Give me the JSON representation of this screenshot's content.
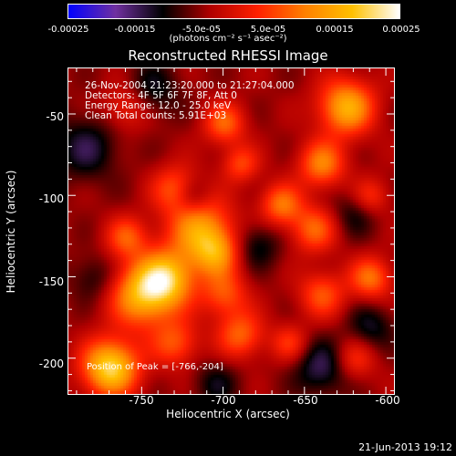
{
  "colorbar": {
    "ticks": [
      "-0.00025",
      "-0.00015",
      "-5.0e-05",
      "5.0e-05",
      "0.00015",
      "0.00025"
    ],
    "units": "(photons cm⁻² s⁻¹ asec⁻²)",
    "range": [
      -0.00025,
      0.00025
    ],
    "colors": [
      "#0000ff",
      "#7030a0",
      "#000000",
      "#b00000",
      "#ff2000",
      "#ff8000",
      "#ffc000",
      "#ffffff"
    ]
  },
  "chart_data": {
    "type": "heatmap",
    "title": "Reconstructed RHESSI Image",
    "xlabel": "Heliocentric X (arcsec)",
    "ylabel": "Heliocentric Y (arcsec)",
    "xlim": [
      -795,
      -595
    ],
    "ylim": [
      -222,
      -22
    ],
    "xticks": [
      "-750",
      "-700",
      "-650",
      "-600"
    ],
    "xtick_values": [
      -750,
      -700,
      -650,
      -600
    ],
    "yticks": [
      "-50",
      "-100",
      "-150",
      "-200"
    ],
    "ytick_values": [
      -50,
      -100,
      -150,
      -200
    ],
    "annotations": [
      "26-Nov-2004 21:23:20.000 to 21:27:04.000",
      "Detectors: 4F 5F 6F 7F 8F, Att 0",
      "Energy Range: 12.0 - 25.0 keV",
      "Clean    Total counts: 5.91E+03"
    ],
    "peak_label": "Position of Peak = [-766,-204]",
    "peak": [
      -766,
      -204
    ],
    "grid": false,
    "blobs": [
      {
        "x": -770,
        "y": -205,
        "amp": 1.0,
        "s": 12
      },
      {
        "x": -750,
        "y": -160,
        "amp": 0.8,
        "s": 14
      },
      {
        "x": -735,
        "y": -150,
        "amp": 0.75,
        "s": 12
      },
      {
        "x": -715,
        "y": -120,
        "amp": 0.7,
        "s": 14
      },
      {
        "x": -705,
        "y": -135,
        "amp": 0.55,
        "s": 10
      },
      {
        "x": -690,
        "y": -185,
        "amp": 0.5,
        "s": 10
      },
      {
        "x": -700,
        "y": -160,
        "amp": 0.45,
        "s": 10
      },
      {
        "x": -625,
        "y": -45,
        "amp": 0.8,
        "s": 12
      },
      {
        "x": -640,
        "y": -80,
        "amp": 0.6,
        "s": 10
      },
      {
        "x": -665,
        "y": -105,
        "amp": 0.55,
        "s": 9
      },
      {
        "x": -645,
        "y": -120,
        "amp": 0.5,
        "s": 10
      },
      {
        "x": -640,
        "y": -160,
        "amp": 0.45,
        "s": 10
      },
      {
        "x": -700,
        "y": -55,
        "amp": 0.5,
        "s": 9
      },
      {
        "x": -690,
        "y": -80,
        "amp": 0.4,
        "s": 8
      },
      {
        "x": -760,
        "y": -125,
        "amp": 0.45,
        "s": 9
      },
      {
        "x": -730,
        "y": -95,
        "amp": 0.45,
        "s": 10
      },
      {
        "x": -610,
        "y": -150,
        "amp": 0.55,
        "s": 9
      },
      {
        "x": -620,
        "y": -200,
        "amp": 0.35,
        "s": 9
      },
      {
        "x": -760,
        "y": -45,
        "amp": 0.35,
        "s": 10
      },
      {
        "x": -730,
        "y": -190,
        "amp": 0.45,
        "s": 10
      },
      {
        "x": -660,
        "y": -190,
        "amp": 0.35,
        "s": 8
      },
      {
        "x": -610,
        "y": -100,
        "amp": 0.35,
        "s": 8
      }
    ],
    "negatives": [
      {
        "x": -785,
        "y": -70,
        "amp": -0.35,
        "s": 14
      },
      {
        "x": -745,
        "y": -35,
        "amp": -0.3,
        "s": 12
      },
      {
        "x": -720,
        "y": -100,
        "amp": -0.3,
        "s": 8
      },
      {
        "x": -680,
        "y": -130,
        "amp": -0.3,
        "s": 10
      },
      {
        "x": -640,
        "y": -205,
        "amp": -0.4,
        "s": 12
      },
      {
        "x": -610,
        "y": -180,
        "amp": -0.3,
        "s": 10
      },
      {
        "x": -620,
        "y": -110,
        "amp": -0.25,
        "s": 10
      },
      {
        "x": -780,
        "y": -150,
        "amp": -0.25,
        "s": 10
      },
      {
        "x": -705,
        "y": -215,
        "amp": -0.25,
        "s": 10
      }
    ]
  },
  "footer_date": "21-Jun-2013 19:12"
}
